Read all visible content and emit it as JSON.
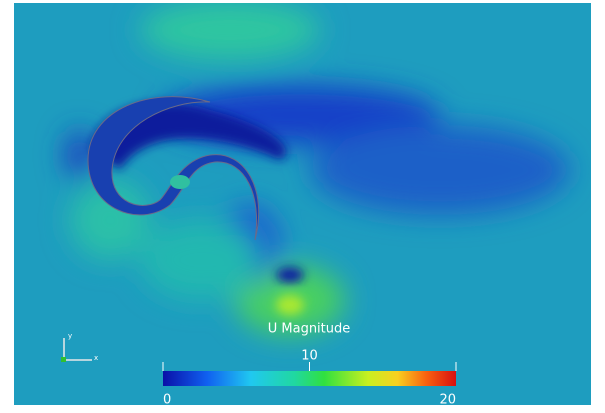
{
  "chart_data": {
    "type": "colorbar",
    "title": "U Magnitude",
    "xlim": [
      0,
      20
    ],
    "xticks": [
      0,
      10,
      20
    ],
    "axes_labels": [
      "y",
      "x"
    ]
  }
}
